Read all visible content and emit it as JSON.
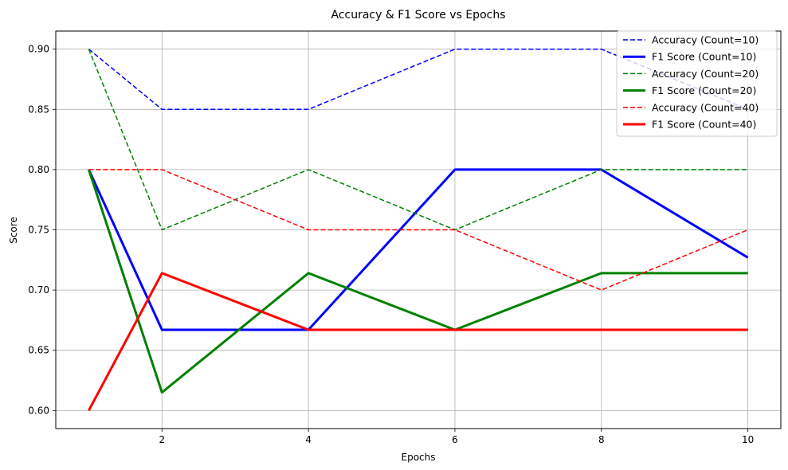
{
  "chart_data": {
    "type": "line",
    "title": "Accuracy & F1 Score vs Epochs",
    "xlabel": "Epochs",
    "ylabel": "Score",
    "x": [
      1,
      2,
      4,
      6,
      8,
      10
    ],
    "xticks": [
      2,
      4,
      6,
      8,
      10
    ],
    "yticks": [
      0.6,
      0.65,
      0.7,
      0.75,
      0.8,
      0.85,
      0.9
    ],
    "xlim": [
      0.55,
      10.45
    ],
    "ylim": [
      0.585,
      0.915
    ],
    "grid": true,
    "legend_position": "top-right",
    "series": [
      {
        "name": "Accuracy (Count=10)",
        "color": "#0000ff",
        "style": "dashed",
        "values": [
          0.9,
          0.85,
          0.85,
          0.9,
          0.9,
          0.85
        ]
      },
      {
        "name": "F1 Score (Count=10)",
        "color": "#0000ff",
        "style": "solid",
        "values": [
          0.8,
          0.667,
          0.667,
          0.8,
          0.8,
          0.727
        ]
      },
      {
        "name": "Accuracy (Count=20)",
        "color": "#008000",
        "style": "dashed",
        "values": [
          0.9,
          0.75,
          0.8,
          0.75,
          0.8,
          0.8
        ]
      },
      {
        "name": "F1 Score (Count=20)",
        "color": "#008000",
        "style": "solid",
        "values": [
          0.8,
          0.615,
          0.714,
          0.667,
          0.714,
          0.714
        ]
      },
      {
        "name": "Accuracy (Count=40)",
        "color": "#ff0000",
        "style": "dashed",
        "values": [
          0.8,
          0.8,
          0.75,
          0.75,
          0.7,
          0.75
        ]
      },
      {
        "name": "F1 Score (Count=40)",
        "color": "#ff0000",
        "style": "solid",
        "values": [
          0.6,
          0.714,
          0.667,
          0.667,
          0.667,
          0.667
        ]
      }
    ]
  }
}
